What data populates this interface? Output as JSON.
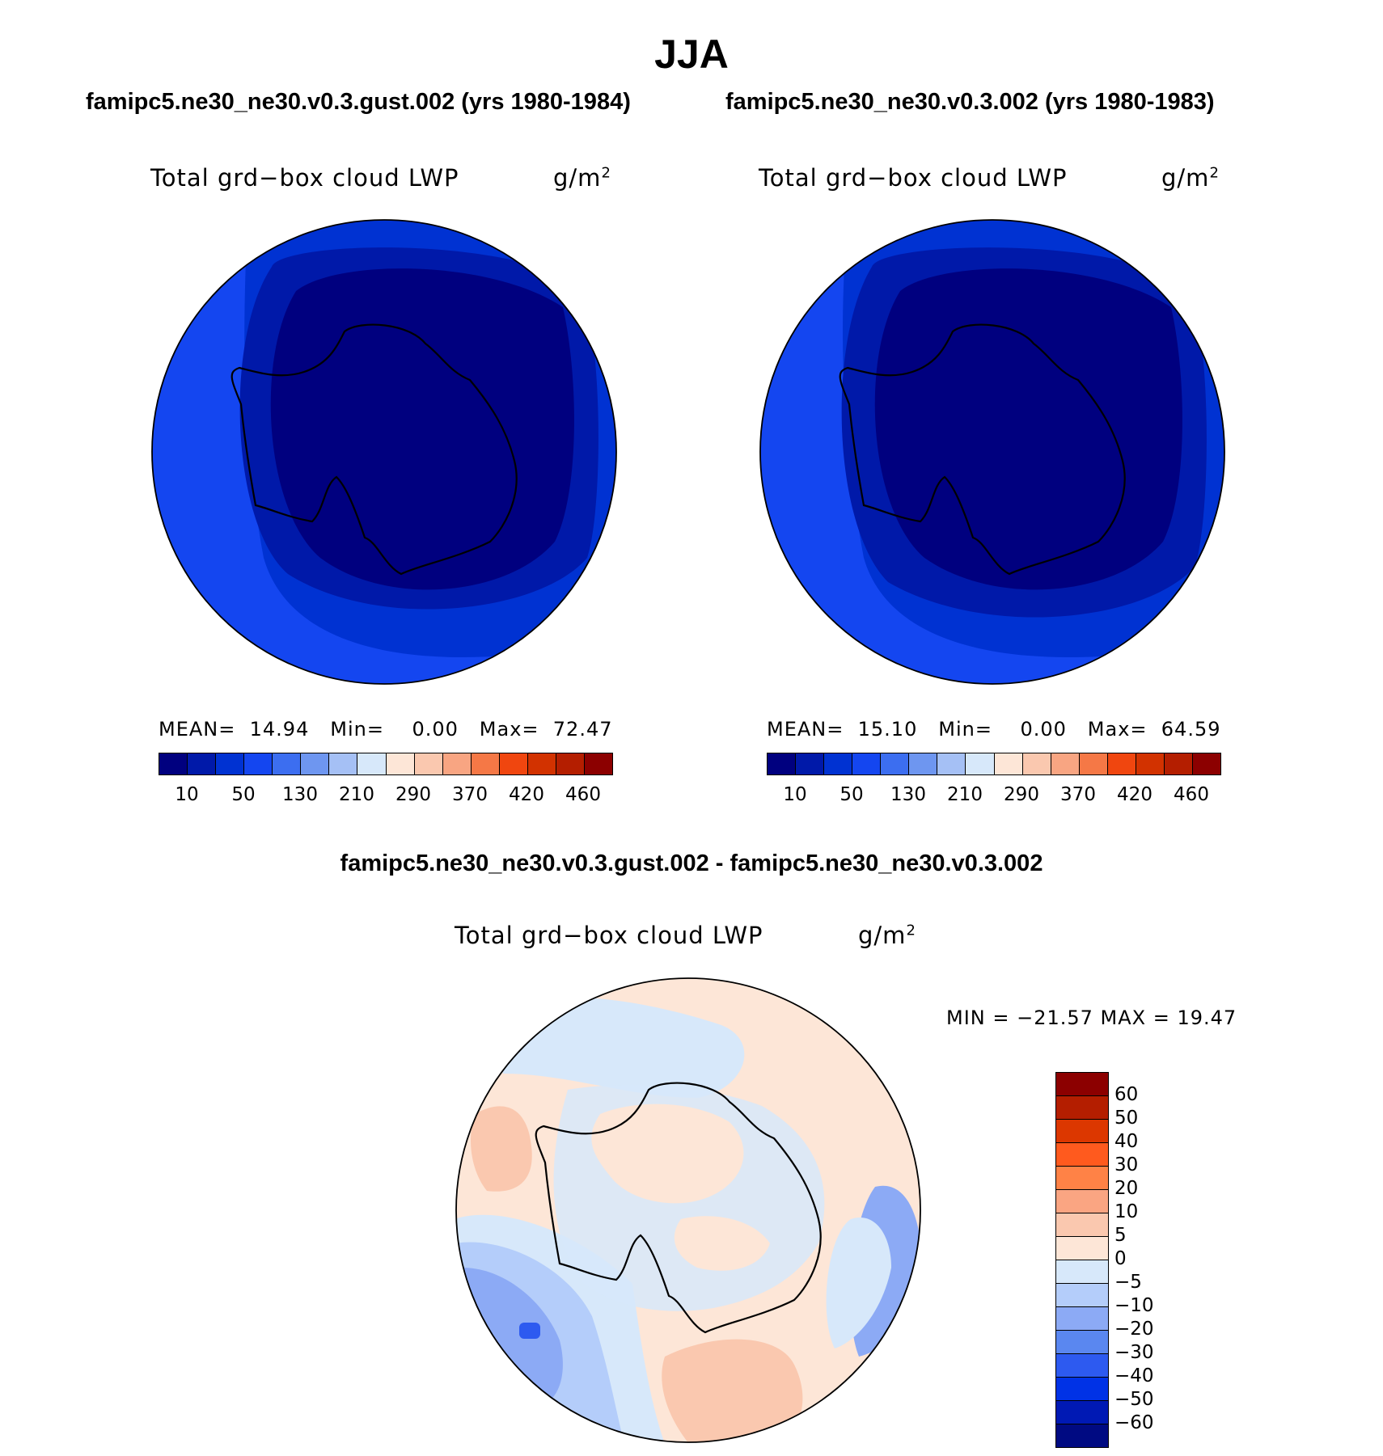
{
  "main_title": "JJA",
  "panels": [
    {
      "run_title": "famipc5.ne30_ne30.v0.3.gust.002 (yrs 1980-1984)",
      "var_title": "Total grd−box cloud LWP",
      "units_base": "g/m",
      "units_sup": "2",
      "mean_label": "MEAN=",
      "mean": "14.94",
      "min_label": "Min=",
      "min": "0.00",
      "max_label": "Max=",
      "max": "72.47"
    },
    {
      "run_title": "famipc5.ne30_ne30.v0.3.002 (yrs 1980-1983)",
      "var_title": "Total grd−box cloud LWP",
      "units_base": "g/m",
      "units_sup": "2",
      "mean_label": "MEAN=",
      "mean": "15.10",
      "min_label": "Min=",
      "min": "0.00",
      "max_label": "Max=",
      "max": "64.59"
    }
  ],
  "abs_colorbar": {
    "colors": [
      "#00007F",
      "#0019A9",
      "#0032D2",
      "#1446F0",
      "#3C6EF0",
      "#6E96F0",
      "#A5C0F5",
      "#D7E8FA",
      "#FDE6D7",
      "#FAC8AF",
      "#F8A582",
      "#F57846",
      "#F0460F",
      "#D23200",
      "#B41E00",
      "#8C0000"
    ],
    "ticks": [
      "10",
      "50",
      "130",
      "210",
      "290",
      "370",
      "420",
      "460"
    ]
  },
  "diff": {
    "title": "famipc5.ne30_ne30.v0.3.gust.002 - famipc5.ne30_ne30.v0.3.002",
    "var_title": "Total grd−box cloud LWP",
    "units_base": "g/m",
    "units_sup": "2",
    "minmax": "MIN = −21.57 MAX =   19.47"
  },
  "diff_colorbar": {
    "colors": [
      "#8C0000",
      "#B41E00",
      "#DC3700",
      "#FF5A1E",
      "#FF8246",
      "#FAA582",
      "#FAC8AF",
      "#FDE6D7",
      "#D7E8FA",
      "#B4CDFA",
      "#8CAAF5",
      "#5A87F0",
      "#2D5AF0",
      "#0032E6",
      "#0019B4",
      "#000A82"
    ],
    "labels": [
      "60",
      "50",
      "40",
      "30",
      "20",
      "10",
      "5",
      "0",
      "−5",
      "−10",
      "−20",
      "−30",
      "−40",
      "−50",
      "−60"
    ]
  }
}
